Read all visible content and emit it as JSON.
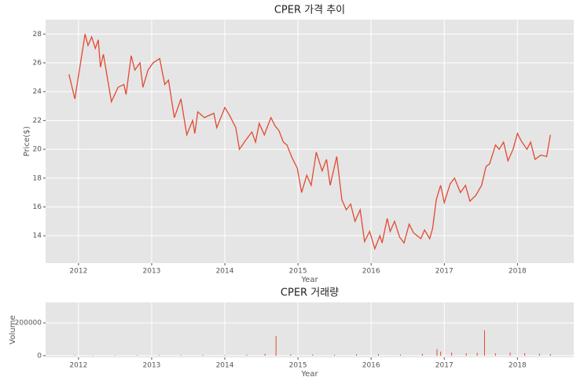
{
  "chart_data": [
    {
      "type": "line",
      "title": "CPER 가격 추이",
      "xlabel": "Year",
      "ylabel": "Price($)",
      "color": "#e24a33",
      "grid": true,
      "xlim": [
        2011.55,
        2018.77
      ],
      "xticks": [
        2012,
        2013,
        2014,
        2015,
        2016,
        2017,
        2018
      ],
      "ylim": [
        12.1,
        29
      ],
      "yticks": [
        14,
        16,
        18,
        20,
        22,
        24,
        26,
        28
      ],
      "x": [
        2011.87,
        2011.95,
        2012.09,
        2012.13,
        2012.18,
        2012.23,
        2012.27,
        2012.3,
        2012.34,
        2012.45,
        2012.54,
        2012.62,
        2012.65,
        2012.72,
        2012.77,
        2012.84,
        2012.88,
        2012.95,
        2013.02,
        2013.11,
        2013.14,
        2013.18,
        2013.23,
        2013.27,
        2013.31,
        2013.4,
        2013.48,
        2013.56,
        2013.59,
        2013.63,
        2013.72,
        2013.85,
        2013.89,
        2014.0,
        2014.06,
        2014.15,
        2014.2,
        2014.28,
        2014.37,
        2014.42,
        2014.47,
        2014.54,
        2014.63,
        2014.69,
        2014.74,
        2014.8,
        2014.85,
        2014.92,
        2014.99,
        2015.05,
        2015.12,
        2015.18,
        2015.25,
        2015.33,
        2015.39,
        2015.44,
        2015.53,
        2015.6,
        2015.66,
        2015.72,
        2015.78,
        2015.85,
        2015.91,
        2015.98,
        2016.05,
        2016.12,
        2016.15,
        2016.22,
        2016.26,
        2016.32,
        2016.39,
        2016.45,
        2016.52,
        2016.58,
        2016.68,
        2016.73,
        2016.8,
        2016.84,
        2016.89,
        2016.95,
        2017.0,
        2017.08,
        2017.14,
        2017.22,
        2017.29,
        2017.35,
        2017.43,
        2017.51,
        2017.57,
        2017.62,
        2017.7,
        2017.75,
        2017.81,
        2017.87,
        2017.94,
        2018.0,
        2018.05,
        2018.13,
        2018.18,
        2018.24,
        2018.32,
        2018.4,
        2018.45
      ],
      "values": [
        25.2,
        23.5,
        28.0,
        27.2,
        27.8,
        27.0,
        27.6,
        25.7,
        26.6,
        23.3,
        24.3,
        24.5,
        23.8,
        26.5,
        25.5,
        26.0,
        24.3,
        25.5,
        26.0,
        26.3,
        25.5,
        24.5,
        24.8,
        23.5,
        22.2,
        23.5,
        21.0,
        22.0,
        21.1,
        22.6,
        22.2,
        22.5,
        21.5,
        22.9,
        22.4,
        21.5,
        20.0,
        20.6,
        21.2,
        20.5,
        21.8,
        21.0,
        22.2,
        21.6,
        21.3,
        20.5,
        20.3,
        19.4,
        18.7,
        17.0,
        18.2,
        17.5,
        19.8,
        18.5,
        19.3,
        17.5,
        19.5,
        16.5,
        15.8,
        16.2,
        15.0,
        15.8,
        13.6,
        14.3,
        13.1,
        14.0,
        13.5,
        15.2,
        14.3,
        15.0,
        13.9,
        13.5,
        14.8,
        14.2,
        13.8,
        14.4,
        13.8,
        14.5,
        16.5,
        17.5,
        16.3,
        17.6,
        18.0,
        17.0,
        17.5,
        16.4,
        16.8,
        17.5,
        18.8,
        19.0,
        20.3,
        20.0,
        20.5,
        19.2,
        20.0,
        21.1,
        20.6,
        20.0,
        20.5,
        19.3,
        19.6,
        19.5,
        21.0
      ]
    },
    {
      "type": "bar",
      "title": "CPER 거래량",
      "xlabel": "Year",
      "ylabel": "Volume",
      "color": "#e24a33",
      "grid": true,
      "xlim": [
        2011.55,
        2018.77
      ],
      "xticks": [
        2012,
        2013,
        2014,
        2015,
        2016,
        2017,
        2018
      ],
      "ylim": [
        -10000,
        325000
      ],
      "yticks": [
        0,
        200000
      ],
      "x": [
        2011.95,
        2012.2,
        2012.5,
        2012.8,
        2013.1,
        2013.4,
        2013.7,
        2014.0,
        2014.3,
        2014.55,
        2014.7,
        2014.9,
        2015.2,
        2015.5,
        2015.8,
        2016.1,
        2016.4,
        2016.7,
        2016.9,
        2016.95,
        2017.1,
        2017.3,
        2017.45,
        2017.55,
        2017.7,
        2017.9,
        2018.1,
        2018.3,
        2018.45
      ],
      "values": [
        3000,
        2000,
        2500,
        3000,
        4000,
        3500,
        5000,
        4000,
        6000,
        12000,
        120000,
        8000,
        7000,
        6000,
        9000,
        10000,
        7000,
        12000,
        40000,
        25000,
        20000,
        15000,
        18000,
        155000,
        15000,
        20000,
        15000,
        12000,
        10000
      ]
    }
  ]
}
